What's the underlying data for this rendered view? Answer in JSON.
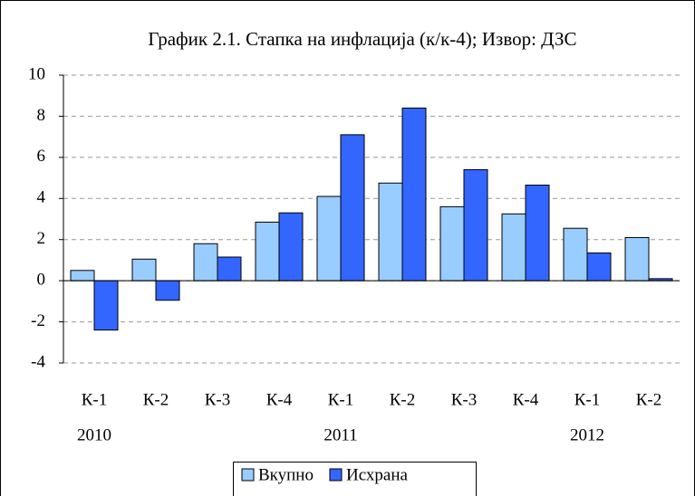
{
  "chart_data": {
    "type": "bar",
    "title": "График 2.1. Стапка на инфлација (к/к-4); Извор: ДЗС",
    "categories": [
      "К-1",
      "К-2",
      "К-3",
      "К-4",
      "К-1",
      "К-2",
      "К-3",
      "К-4",
      "К-1",
      "К-2"
    ],
    "category_years": [
      "2010",
      null,
      null,
      null,
      "2011",
      null,
      null,
      null,
      "2012",
      null
    ],
    "series": [
      {
        "name": "Вкупно",
        "color": "#99ccff",
        "values": [
          0.5,
          1.05,
          1.8,
          2.85,
          4.1,
          4.75,
          3.6,
          3.25,
          2.55,
          2.1
        ]
      },
      {
        "name": "Исхрана",
        "color": "#3366ff",
        "values": [
          -2.4,
          -0.95,
          1.15,
          3.3,
          7.1,
          8.4,
          5.4,
          4.65,
          1.35,
          0.1
        ]
      }
    ],
    "ylim": [
      -4,
      10
    ],
    "yticks": [
      -4,
      -2,
      0,
      2,
      4,
      6,
      8,
      10
    ],
    "grid": true,
    "legend": "bottom"
  }
}
